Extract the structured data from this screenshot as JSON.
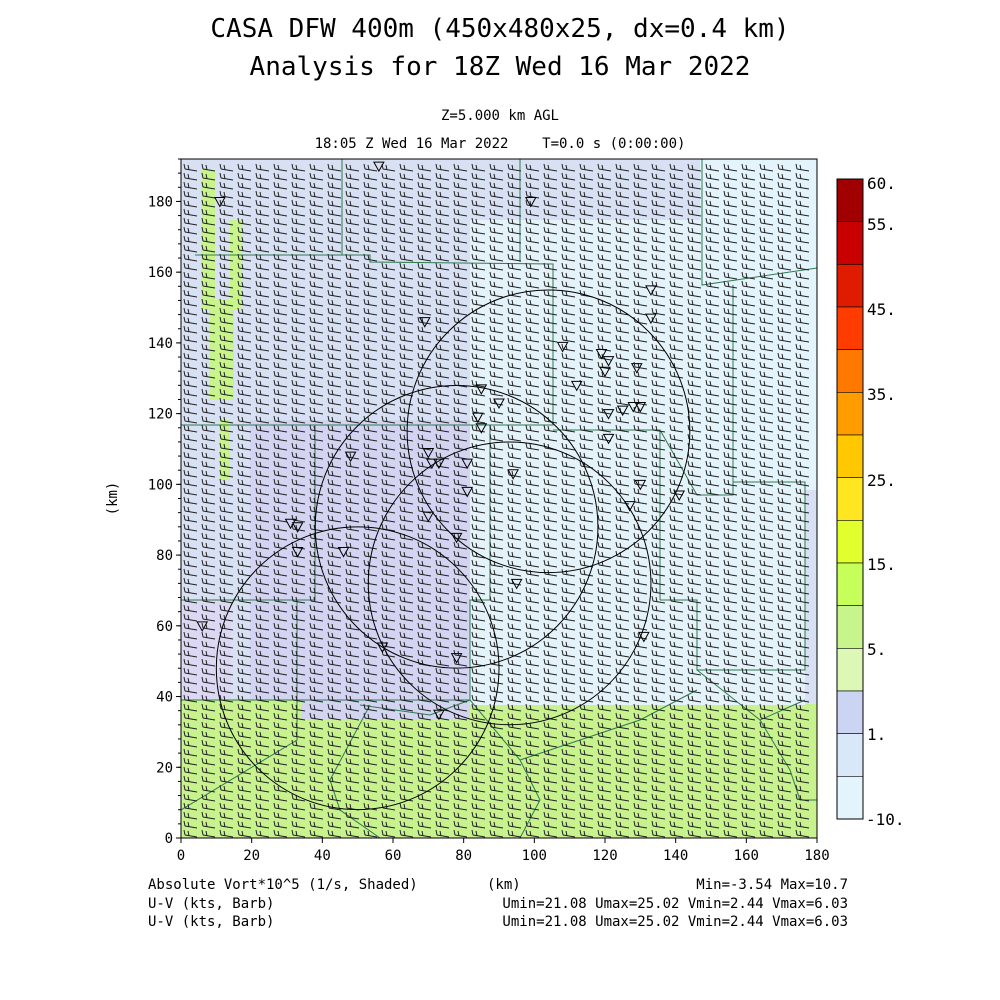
{
  "header": {
    "title_line1": "CASA DFW 400m (450x480x25, dx=0.4 km)",
    "title_line2": "Analysis for 18Z Wed 16 Mar 2022",
    "level": "Z=5.000 km AGL",
    "time": "18:05 Z Wed 16 Mar 2022    T=0.0 s (0:00:00)"
  },
  "footer": {
    "field1": "Absolute Vort*10^5 (1/s, Shaded)",
    "xunit": "(km)",
    "minmax": "Min=-3.54 Max=10.7",
    "field2": "U-V (kts, Barb)",
    "field2_range": "Umin=21.08 Umax=25.02 Vmin=2.44 Vmax=6.03",
    "field3": "U-V (kts, Barb)",
    "field3_range": "Umin=21.08 Umax=25.02 Vmin=2.44 Vmax=6.03"
  },
  "chart_data": {
    "type": "heatmap",
    "xlabel": "(km)",
    "ylabel": "(km)",
    "xlim": [
      0,
      180
    ],
    "ylim": [
      0,
      192
    ],
    "xticks": [
      0,
      20,
      40,
      60,
      80,
      100,
      120,
      140,
      160,
      180
    ],
    "yticks": [
      0,
      20,
      40,
      60,
      80,
      100,
      120,
      140,
      160,
      180
    ],
    "colorbar": {
      "labels": [
        "60.",
        "55.",
        "45.",
        "35.",
        "25.",
        "15.",
        "5.",
        "1.",
        "-10."
      ],
      "colors": [
        "#a00000",
        "#c80000",
        "#e01c00",
        "#ff3c00",
        "#ff7800",
        "#ff9c00",
        "#ffc800",
        "#ffe620",
        "#e0ff2c",
        "#c6ff5a",
        "#c8f48c",
        "#dcf8b4",
        "#ccd4f4",
        "#d8e8f8",
        "#e4f4fc"
      ]
    },
    "field_regions": [
      {
        "name": "weak-vorticity-upper",
        "y_range": [
          38,
          192
        ],
        "color": "#d8e0f4"
      },
      {
        "name": "moderate-vorticity-lower",
        "y_range": [
          0,
          38
        ],
        "color": "#c8f28e"
      }
    ],
    "radar_sites": [
      {
        "center": [
          104,
          115
        ],
        "radius_km": 40
      },
      {
        "center": [
          78,
          88
        ],
        "radius_km": 40
      },
      {
        "center": [
          93,
          72
        ],
        "radius_km": 40
      },
      {
        "center": [
          50,
          48
        ],
        "radius_km": 40
      }
    ],
    "barbs": {
      "u_range": [
        21.08,
        25.02
      ],
      "v_range": [
        2.44,
        6.03
      ],
      "units": "kts"
    },
    "stations": [
      [
        56,
        190
      ],
      [
        11,
        180
      ],
      [
        99,
        180
      ],
      [
        69,
        146
      ],
      [
        108,
        139
      ],
      [
        119,
        137
      ],
      [
        121,
        135
      ],
      [
        120,
        132
      ],
      [
        129,
        133
      ],
      [
        133,
        155
      ],
      [
        133,
        147
      ],
      [
        85,
        127
      ],
      [
        90,
        123
      ],
      [
        84,
        119
      ],
      [
        85,
        116
      ],
      [
        125,
        121
      ],
      [
        128,
        122
      ],
      [
        130,
        122
      ],
      [
        121,
        120
      ],
      [
        121,
        113
      ],
      [
        112,
        128
      ],
      [
        48,
        108
      ],
      [
        70,
        109
      ],
      [
        71,
        106
      ],
      [
        73,
        106
      ],
      [
        81,
        106
      ],
      [
        94,
        103
      ],
      [
        130,
        100
      ],
      [
        141,
        97
      ],
      [
        81,
        98
      ],
      [
        127,
        94
      ],
      [
        70,
        91
      ],
      [
        31,
        89
      ],
      [
        33,
        88
      ],
      [
        78,
        85
      ],
      [
        33,
        81
      ],
      [
        46,
        81
      ],
      [
        95,
        72
      ],
      [
        6,
        60
      ],
      [
        131,
        57
      ],
      [
        57,
        54
      ],
      [
        78,
        51
      ],
      [
        73,
        35
      ]
    ]
  }
}
